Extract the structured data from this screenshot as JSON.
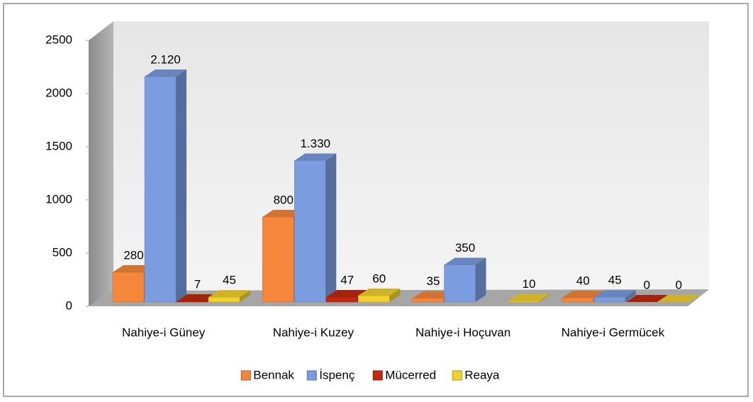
{
  "chart_data": {
    "type": "bar3d",
    "categories": [
      "Nahiye-i Güney",
      "Nahiye-i Kuzey",
      "Nahiye-i Hoçuvan",
      "Nahiye-i Germücek"
    ],
    "series": [
      {
        "name": "Bennak",
        "color": "#f5873c",
        "values": [
          280,
          800,
          35,
          40
        ],
        "value_labels": [
          "280",
          "800",
          "35",
          "40"
        ]
      },
      {
        "name": "İspenç",
        "color": "#7b9de0",
        "values": [
          2120,
          1330,
          350,
          45
        ],
        "value_labels": [
          "2.120",
          "1.330",
          "350",
          "45"
        ]
      },
      {
        "name": "Mücerred",
        "color": "#c0290f",
        "values": [
          7,
          47,
          null,
          0
        ],
        "value_labels": [
          "7",
          "47",
          null,
          "0"
        ]
      },
      {
        "name": "Reaya",
        "color": "#f3d12c",
        "values": [
          45,
          60,
          10,
          0
        ],
        "value_labels": [
          "45",
          "60",
          "10",
          "0"
        ]
      }
    ],
    "ylim": [
      0,
      2500
    ],
    "yticks": [
      0,
      500,
      1000,
      1500,
      2000,
      2500
    ],
    "legend": "bottom"
  }
}
